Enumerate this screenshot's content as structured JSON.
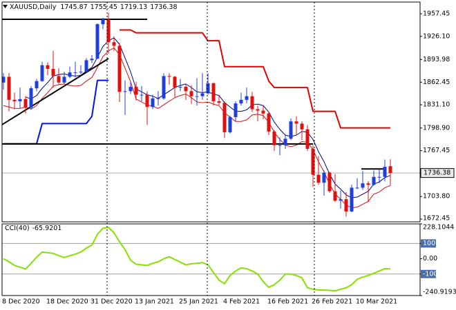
{
  "chart_data": [
    {
      "type": "candlestick",
      "title": "XAUUSD,Daily",
      "categories": [
        "8 Dec 2020",
        null,
        null,
        null,
        null,
        null,
        null,
        null,
        "18 Dec 2020",
        null,
        null,
        null,
        null,
        null,
        null,
        null,
        "31 Dec 2020",
        null,
        null,
        null,
        null,
        null,
        null,
        null,
        "13 Jan 2021",
        null,
        null,
        null,
        null,
        null,
        null,
        null,
        "25 Jan 2021",
        null,
        null,
        null,
        null,
        null,
        null,
        null,
        "4 Feb 2021",
        null,
        null,
        null,
        null,
        null,
        null,
        null,
        "16 Feb 2021",
        null,
        null,
        null,
        null,
        null,
        null,
        null,
        "26 Feb 2021",
        null,
        null,
        null,
        null,
        null,
        null,
        null,
        "10 Mar 2021",
        null,
        null,
        null,
        null,
        null,
        null
      ],
      "open": [
        1862,
        1870,
        1838,
        1836,
        1839,
        1827,
        1854,
        1864,
        1886,
        1881,
        1871,
        1862,
        1870,
        1876,
        1876,
        1877,
        1893,
        1895,
        1943,
        1950,
        1918,
        1913,
        1849,
        1850,
        1856,
        1845,
        1845,
        1828,
        1840,
        1840,
        1871,
        1870,
        1855,
        1856,
        1850,
        1843,
        1843,
        1847,
        1861,
        1836,
        1834,
        1793,
        1814,
        1833,
        1838,
        1843,
        1825,
        1823,
        1819,
        1794,
        1775,
        1775,
        1784,
        1808,
        1805,
        1797,
        1770,
        1734,
        1723,
        1737,
        1711,
        1698,
        1700,
        1683,
        1716,
        1716,
        1722,
        1720,
        1731,
        1731,
        1745.87
      ],
      "high": [
        1875,
        1875,
        1848,
        1855,
        1843,
        1857,
        1867,
        1891,
        1890,
        1906,
        1882,
        1877,
        1884,
        1891,
        1886,
        1896,
        1900,
        1944,
        1952,
        1959,
        1926,
        1917,
        1865,
        1862,
        1863,
        1857,
        1850,
        1845,
        1850,
        1875,
        1875,
        1871,
        1867,
        1860,
        1858,
        1868,
        1875,
        1875,
        1862,
        1845,
        1836,
        1816,
        1836,
        1848,
        1855,
        1849,
        1830,
        1829,
        1822,
        1796,
        1786,
        1789,
        1812,
        1815,
        1808,
        1803,
        1775,
        1760,
        1740,
        1738,
        1735,
        1712,
        1710,
        1720,
        1729,
        1739,
        1725,
        1740,
        1741,
        1755,
        1755.45
      ],
      "low": [
        1852,
        1822,
        1825,
        1826,
        1819,
        1825,
        1850,
        1863,
        1872,
        1855,
        1859,
        1860,
        1868,
        1869,
        1873,
        1876,
        1889,
        1895,
        1936,
        1902,
        1906,
        1835,
        1817,
        1846,
        1837,
        1836,
        1803,
        1825,
        1830,
        1838,
        1859,
        1842,
        1850,
        1838,
        1832,
        1830,
        1838,
        1845,
        1830,
        1831,
        1785,
        1791,
        1808,
        1830,
        1833,
        1821,
        1808,
        1811,
        1789,
        1767,
        1761,
        1770,
        1782,
        1790,
        1782,
        1767,
        1717,
        1720,
        1705,
        1709,
        1696,
        1687,
        1676,
        1682,
        1714,
        1713,
        1696,
        1719,
        1722,
        1725,
        1719.13
      ],
      "close": [
        1870,
        1838,
        1836,
        1839,
        1827,
        1854,
        1864,
        1886,
        1881,
        1871,
        1862,
        1870,
        1876,
        1876,
        1877,
        1893,
        1895,
        1943,
        1950,
        1918,
        1913,
        1849,
        1850,
        1856,
        1845,
        1845,
        1828,
        1840,
        1840,
        1871,
        1870,
        1855,
        1856,
        1850,
        1843,
        1843,
        1847,
        1861,
        1836,
        1834,
        1793,
        1814,
        1833,
        1838,
        1843,
        1825,
        1823,
        1819,
        1794,
        1775,
        1775,
        1784,
        1808,
        1805,
        1797,
        1770,
        1734,
        1723,
        1737,
        1711,
        1698,
        1700,
        1683,
        1716,
        1716,
        1722,
        1720,
        1731,
        1731,
        1745,
        1736.38
      ],
      "up_color": "#1f3fdd",
      "down_color": "#e01010",
      "overlays": [
        {
          "color": "#000080",
          "width": 1,
          "values": [
            null,
            null,
            null,
            null,
            1842,
            1839,
            1844,
            1854,
            1862,
            1871,
            1873,
            1874,
            1872,
            1871,
            1872,
            1878,
            1883,
            1897,
            1912,
            1920,
            1924,
            1915,
            1896,
            1877,
            1853,
            1849,
            1845,
            1843,
            1840,
            1845,
            1850,
            1855,
            1858,
            1860,
            1855,
            1849,
            1848,
            1849,
            1846,
            1844,
            1834,
            1828,
            1822,
            1822,
            1824,
            1831,
            1832,
            1830,
            1821,
            1807,
            1797,
            1789,
            1787,
            1789,
            1794,
            1793,
            1783,
            1766,
            1752,
            1735,
            1721,
            1714,
            1706,
            1702,
            1703,
            1707,
            1711,
            1721,
            1724,
            1730,
            1733
          ]
        },
        {
          "color": "#d01010",
          "width": 1,
          "values": [
            1830,
            1828,
            1826,
            1826,
            1828,
            1825,
            1830,
            1840,
            1848,
            1857,
            1859,
            1860,
            1858,
            1857,
            1858,
            1864,
            1869,
            1883,
            1898,
            1906,
            1910,
            1901,
            1882,
            1863,
            1839,
            1835,
            1831,
            1829,
            1826,
            1831,
            1836,
            1841,
            1844,
            1846,
            1841,
            1835,
            1834,
            1835,
            1832,
            1830,
            1820,
            1814,
            1808,
            1808,
            1810,
            1817,
            1818,
            1816,
            1807,
            1793,
            1783,
            1775,
            1773,
            1775,
            1780,
            1779,
            1769,
            1752,
            1738,
            1721,
            1707,
            1700,
            1692,
            1688,
            1689,
            1693,
            1697,
            1707,
            1710,
            1716,
            1719
          ]
        },
        {
          "color": "#e00000",
          "width": 2,
          "values": [
            null,
            null,
            null,
            null,
            null,
            null,
            null,
            null,
            null,
            null,
            null,
            null,
            null,
            null,
            null,
            null,
            null,
            null,
            null,
            null,
            null,
            1935,
            1935,
            1935,
            1931,
            1931,
            1931,
            1931,
            1931,
            1931,
            1931,
            1931,
            1931,
            1931,
            1931,
            1931,
            1931,
            1920,
            1920,
            1920,
            1884,
            1884,
            1884,
            1884,
            1884,
            1884,
            1884,
            1884,
            1864,
            1855,
            1855,
            1855,
            1855,
            1855,
            1855,
            1855,
            1822,
            1822,
            1822,
            1822,
            1822,
            1799,
            1799,
            1799,
            1799,
            1799,
            1799,
            1799,
            1799,
            1799,
            1799
          ]
        },
        {
          "color": "#0010ee",
          "width": 2,
          "values": [
            1777,
            1777,
            1777,
            1777,
            1777,
            1777,
            1777,
            1805,
            1805,
            1805,
            1805,
            1805,
            1805,
            1805,
            1805,
            1805,
            1815,
            1865,
            1865,
            1865,
            null,
            null,
            null,
            null,
            null,
            null,
            null,
            null,
            null,
            null,
            null,
            null,
            null,
            null,
            null,
            null,
            null,
            null,
            null,
            null,
            null,
            null,
            null,
            null,
            null,
            null,
            null,
            null,
            null,
            null,
            null,
            null,
            null,
            null,
            null,
            null,
            null,
            null,
            null,
            null,
            null,
            null,
            null,
            null,
            null,
            null,
            null,
            null,
            null,
            null,
            null
          ]
        }
      ],
      "trendlines": [
        {
          "color": "#000000",
          "x": [
            0,
            26
          ],
          "y": [
            1949.8,
            1949.8
          ]
        },
        {
          "color": "#000000",
          "x": [
            0,
            19
          ],
          "y": [
            1803.5,
            1895.3
          ]
        },
        {
          "color": "#000000",
          "x": [
            0,
            56
          ],
          "y": [
            1776.7,
            1776.7
          ]
        },
        {
          "color": "#000000",
          "x": [
            65,
            69
          ],
          "y": [
            1742,
            1742
          ]
        }
      ],
      "ylim": [
        1668.6,
        1973.7
      ],
      "yticks": [
        1957.45,
        {
          "value": 1926.1,
          "label": "1926.10"
        },
        1893.98,
        1862.45,
        {
          "value": 1831.1,
          "label": "1831.10"
        },
        {
          "value": 1798.9,
          "label": "1798.90"
        },
        1767.45,
        {
          "value": 1703.8,
          "label": "1703.80"
        },
        1672.45
      ]
    },
    {
      "type": "line",
      "title": "CCI(40)",
      "color": "#88e000",
      "values": [
        0,
        -20,
        -44,
        -55,
        -67,
        -30,
        10,
        44,
        40,
        35,
        20,
        8,
        20,
        30,
        44,
        70,
        89,
        160,
        200,
        205,
        170,
        111,
        60,
        -10,
        -36,
        -40,
        -44,
        -30,
        -20,
        0,
        13,
        -5,
        -22,
        -40,
        -33,
        -30,
        -25,
        -40,
        -90,
        -140,
        -164,
        -110,
        -80,
        -60,
        -65,
        -80,
        -100,
        -150,
        -187,
        -170,
        -140,
        -100,
        -100,
        -110,
        -125,
        -190,
        -200,
        -205,
        -205,
        -207,
        -210,
        -200,
        -190,
        -170,
        -135,
        -120,
        -110,
        -95,
        -80,
        -65,
        -65.9201
      ],
      "levels": [
        100,
        -100
      ],
      "ylim": [
        -240.9193,
        228.1044
      ],
      "yticks": [
        228.1044,
        100,
        {
          "value": 0,
          "label": "0.00"
        },
        -100,
        -240.9193
      ]
    }
  ]
}
